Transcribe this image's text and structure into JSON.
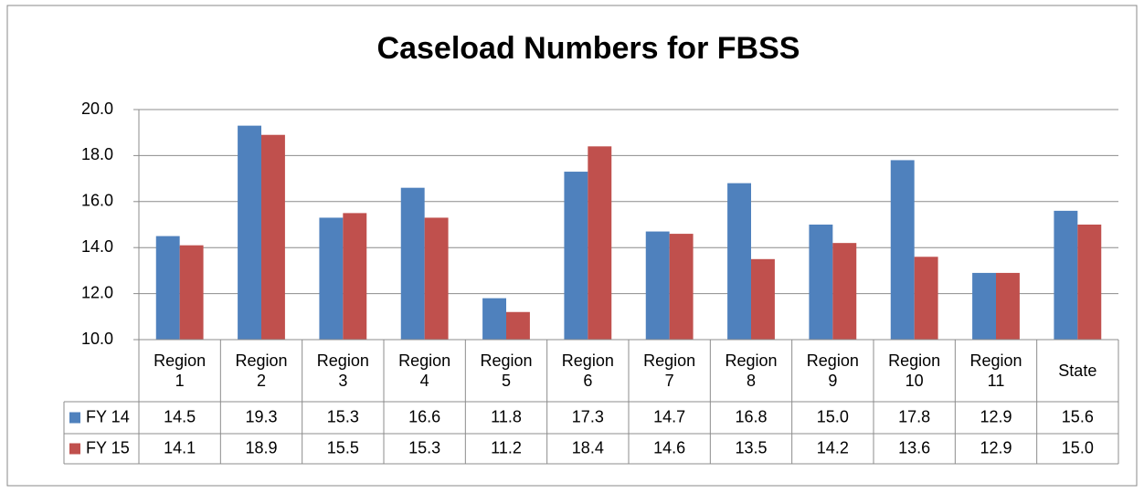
{
  "chart_data": {
    "type": "bar",
    "title": "Caseload Numbers for FBSS",
    "categories": [
      "Region 1",
      "Region 2",
      "Region 3",
      "Region 4",
      "Region 5",
      "Region 6",
      "Region 7",
      "Region 8",
      "Region 9",
      "Region 10",
      "Region 11",
      "State"
    ],
    "series": [
      {
        "name": "FY 14",
        "color": "#4f81bd",
        "values": [
          14.5,
          19.3,
          15.3,
          16.6,
          11.8,
          17.3,
          14.7,
          16.8,
          15.0,
          17.8,
          12.9,
          15.6
        ],
        "value_labels": [
          "14.5",
          "19.3",
          "15.3",
          "16.6",
          "11.8",
          "17.3",
          "14.7",
          "16.8",
          "15.0",
          "17.8",
          "12.9",
          "15.6"
        ]
      },
      {
        "name": "FY 15",
        "color": "#c0504d",
        "values": [
          14.1,
          18.9,
          15.5,
          15.3,
          11.2,
          18.4,
          14.6,
          13.5,
          14.2,
          13.6,
          12.9,
          15.0
        ],
        "value_labels": [
          "14.1",
          "18.9",
          "15.5",
          "15.3",
          "11.2",
          "18.4",
          "14.6",
          "13.5",
          "14.2",
          "13.6",
          "12.9",
          "15.0"
        ]
      }
    ],
    "ylim": [
      10,
      20
    ],
    "yticks": [
      {
        "value": 10,
        "label": "10.0"
      },
      {
        "value": 12,
        "label": "12.0"
      },
      {
        "value": 14,
        "label": "14.0"
      },
      {
        "value": 16,
        "label": "16.0"
      },
      {
        "value": 18,
        "label": "18.0"
      },
      {
        "value": 20,
        "label": "20.0"
      }
    ],
    "grid": true
  }
}
